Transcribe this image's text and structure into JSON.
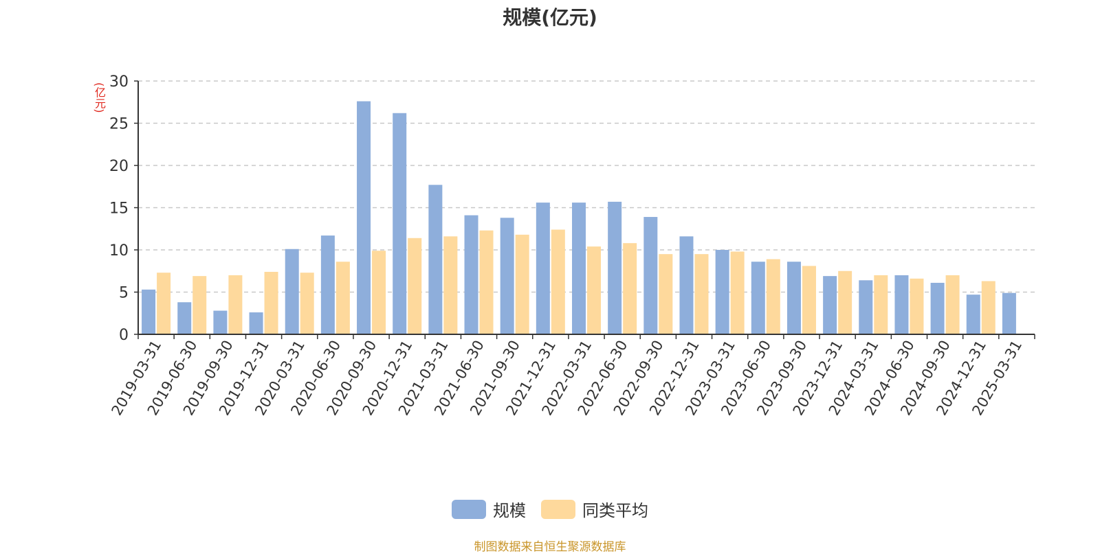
{
  "chart_data": {
    "type": "bar",
    "title": "规模(亿元)",
    "ylabel": "(亿元)",
    "ylim": [
      0,
      30
    ],
    "yticks": [
      0,
      5,
      10,
      15,
      20,
      25,
      30
    ],
    "grid": true,
    "legend_position": "bottom-center",
    "categories": [
      "2019-03-31",
      "2019-06-30",
      "2019-09-30",
      "2019-12-31",
      "2020-03-31",
      "2020-06-30",
      "2020-09-30",
      "2020-12-31",
      "2021-03-31",
      "2021-06-30",
      "2021-09-30",
      "2021-12-31",
      "2022-03-31",
      "2022-06-30",
      "2022-09-30",
      "2022-12-31",
      "2023-03-31",
      "2023-06-30",
      "2023-09-30",
      "2023-12-31",
      "2024-03-31",
      "2024-06-30",
      "2024-09-30",
      "2024-12-31",
      "2025-03-31"
    ],
    "series": [
      {
        "name": "规模",
        "color": "#8eaedb",
        "values": [
          5.3,
          3.8,
          2.8,
          2.6,
          10.1,
          11.7,
          27.6,
          26.2,
          17.7,
          14.1,
          13.8,
          15.6,
          15.6,
          15.7,
          13.9,
          11.6,
          10.0,
          8.6,
          8.6,
          6.9,
          6.4,
          7.0,
          6.1,
          4.7,
          4.9
        ]
      },
      {
        "name": "同类平均",
        "color": "#fed99c",
        "values": [
          7.3,
          6.9,
          7.0,
          7.4,
          7.3,
          8.6,
          9.9,
          11.4,
          11.6,
          12.3,
          11.8,
          12.4,
          10.4,
          10.8,
          9.5,
          9.5,
          9.8,
          8.9,
          8.1,
          7.5,
          7.0,
          6.6,
          7.0,
          6.3,
          null
        ]
      }
    ]
  },
  "legend": {
    "items": [
      {
        "label": "规模",
        "color": "#8eaedb"
      },
      {
        "label": "同类平均",
        "color": "#fed99c"
      }
    ]
  },
  "source_text": "制图数据来自恒生聚源数据库"
}
